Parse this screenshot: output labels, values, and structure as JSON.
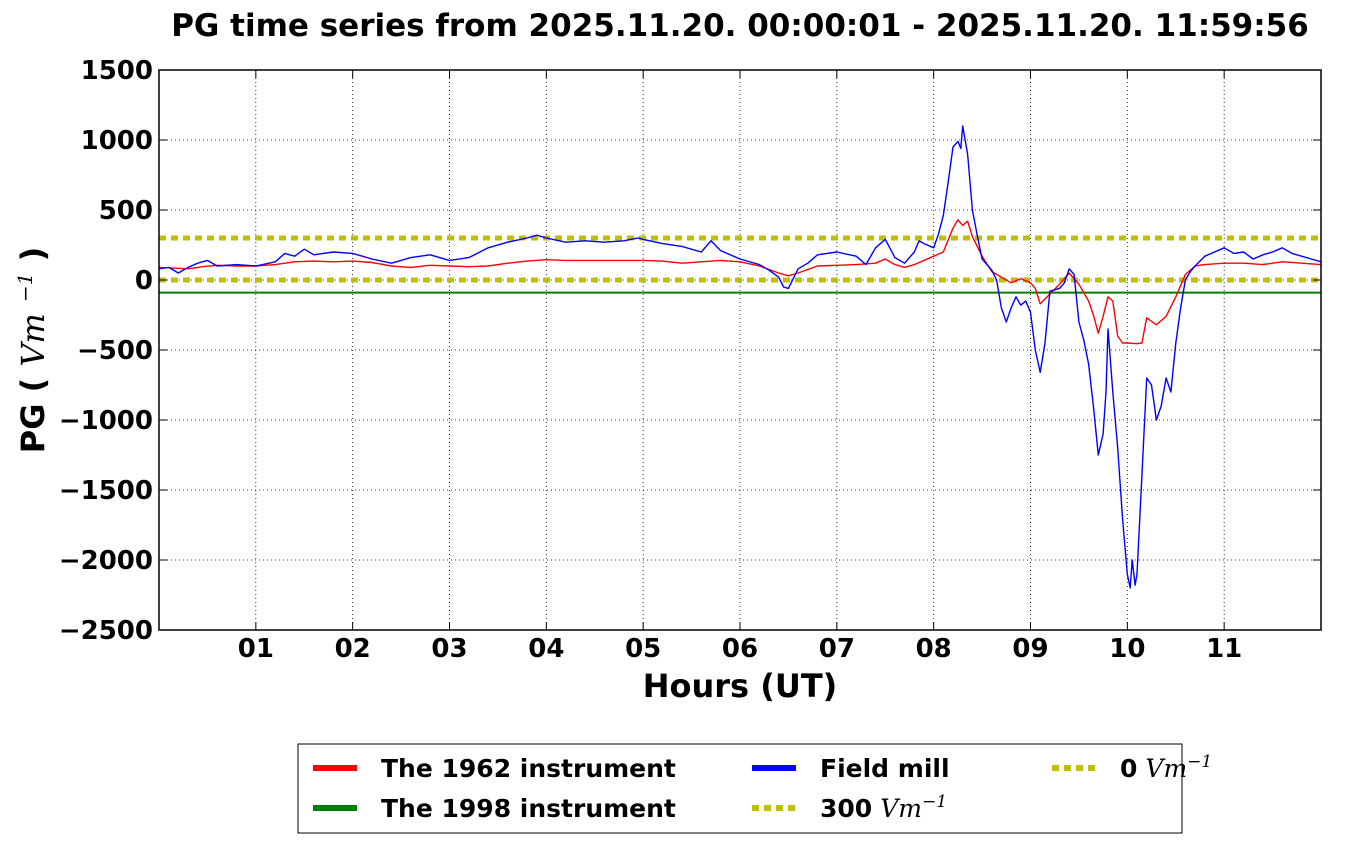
{
  "chart_data": {
    "type": "line",
    "title": "PG time series from 2025.11.20. 00:00:01 - 2025.11.20. 11:59:56",
    "xlabel": "Hours (UT)",
    "ylabel": "PG",
    "ylabel_unit": "Vm",
    "ylabel_unit_exp": "−1",
    "xlim": [
      0,
      12
    ],
    "ylim": [
      -2500,
      1500
    ],
    "grid": true,
    "legend_position": "below-center",
    "x_ticks": [
      {
        "value": 1,
        "label": "01"
      },
      {
        "value": 2,
        "label": "02"
      },
      {
        "value": 3,
        "label": "03"
      },
      {
        "value": 4,
        "label": "04"
      },
      {
        "value": 5,
        "label": "05"
      },
      {
        "value": 6,
        "label": "06"
      },
      {
        "value": 7,
        "label": "07"
      },
      {
        "value": 8,
        "label": "08"
      },
      {
        "value": 9,
        "label": "09"
      },
      {
        "value": 10,
        "label": "10"
      },
      {
        "value": 11,
        "label": "11"
      }
    ],
    "y_ticks": [
      {
        "value": 1500,
        "label": "1500"
      },
      {
        "value": 1000,
        "label": "1000"
      },
      {
        "value": 500,
        "label": "500"
      },
      {
        "value": 0,
        "label": "0"
      },
      {
        "value": -500,
        "label": "−500"
      },
      {
        "value": -1000,
        "label": "−1000"
      },
      {
        "value": -1500,
        "label": "−1500"
      },
      {
        "value": -2000,
        "label": "−2000"
      },
      {
        "value": -2500,
        "label": "−2500"
      }
    ],
    "series": [
      {
        "name": "The 1962 instrument",
        "color": "#ff0000",
        "style": "solid",
        "points": [
          [
            0.0,
            90
          ],
          [
            0.15,
            85
          ],
          [
            0.3,
            80
          ],
          [
            0.45,
            95
          ],
          [
            0.6,
            105
          ],
          [
            0.8,
            100
          ],
          [
            1.0,
            100
          ],
          [
            1.2,
            110
          ],
          [
            1.4,
            130
          ],
          [
            1.6,
            135
          ],
          [
            1.8,
            130
          ],
          [
            2.0,
            135
          ],
          [
            2.2,
            125
          ],
          [
            2.4,
            100
          ],
          [
            2.6,
            90
          ],
          [
            2.8,
            105
          ],
          [
            3.0,
            100
          ],
          [
            3.2,
            95
          ],
          [
            3.4,
            100
          ],
          [
            3.6,
            120
          ],
          [
            3.8,
            135
          ],
          [
            4.0,
            145
          ],
          [
            4.2,
            140
          ],
          [
            4.4,
            140
          ],
          [
            4.6,
            140
          ],
          [
            4.8,
            140
          ],
          [
            5.0,
            140
          ],
          [
            5.2,
            135
          ],
          [
            5.4,
            120
          ],
          [
            5.6,
            130
          ],
          [
            5.8,
            140
          ],
          [
            6.0,
            130
          ],
          [
            6.2,
            100
          ],
          [
            6.4,
            50
          ],
          [
            6.5,
            30
          ],
          [
            6.6,
            50
          ],
          [
            6.8,
            100
          ],
          [
            7.0,
            105
          ],
          [
            7.2,
            110
          ],
          [
            7.4,
            120
          ],
          [
            7.5,
            150
          ],
          [
            7.6,
            110
          ],
          [
            7.7,
            90
          ],
          [
            7.8,
            110
          ],
          [
            8.0,
            170
          ],
          [
            8.1,
            200
          ],
          [
            8.2,
            370
          ],
          [
            8.25,
            430
          ],
          [
            8.3,
            390
          ],
          [
            8.35,
            420
          ],
          [
            8.4,
            310
          ],
          [
            8.5,
            170
          ],
          [
            8.6,
            60
          ],
          [
            8.7,
            20
          ],
          [
            8.8,
            -20
          ],
          [
            8.9,
            10
          ],
          [
            9.0,
            -20
          ],
          [
            9.05,
            -60
          ],
          [
            9.1,
            -170
          ],
          [
            9.2,
            -100
          ],
          [
            9.3,
            -30
          ],
          [
            9.4,
            50
          ],
          [
            9.5,
            -30
          ],
          [
            9.6,
            -150
          ],
          [
            9.65,
            -250
          ],
          [
            9.7,
            -380
          ],
          [
            9.75,
            -260
          ],
          [
            9.8,
            -120
          ],
          [
            9.85,
            -150
          ],
          [
            9.9,
            -400
          ],
          [
            9.95,
            -450
          ],
          [
            10.0,
            -450
          ],
          [
            10.1,
            -455
          ],
          [
            10.15,
            -450
          ],
          [
            10.2,
            -270
          ],
          [
            10.3,
            -320
          ],
          [
            10.4,
            -260
          ],
          [
            10.5,
            -120
          ],
          [
            10.6,
            40
          ],
          [
            10.7,
            100
          ],
          [
            10.8,
            110
          ],
          [
            11.0,
            120
          ],
          [
            11.2,
            120
          ],
          [
            11.4,
            110
          ],
          [
            11.6,
            130
          ],
          [
            11.8,
            120
          ],
          [
            12.0,
            110
          ]
        ]
      },
      {
        "name": "The 1998 instrument",
        "color": "#008000",
        "style": "solid",
        "points": [
          [
            0.0,
            -90
          ],
          [
            12.0,
            -90
          ]
        ]
      },
      {
        "name": "Field mill",
        "color": "#0000ff",
        "style": "solid",
        "points": [
          [
            0.0,
            80
          ],
          [
            0.1,
            90
          ],
          [
            0.2,
            50
          ],
          [
            0.3,
            90
          ],
          [
            0.4,
            120
          ],
          [
            0.5,
            140
          ],
          [
            0.6,
            100
          ],
          [
            0.8,
            110
          ],
          [
            1.0,
            100
          ],
          [
            1.2,
            130
          ],
          [
            1.3,
            190
          ],
          [
            1.4,
            170
          ],
          [
            1.5,
            220
          ],
          [
            1.6,
            180
          ],
          [
            1.8,
            200
          ],
          [
            2.0,
            190
          ],
          [
            2.2,
            150
          ],
          [
            2.4,
            120
          ],
          [
            2.5,
            140
          ],
          [
            2.6,
            160
          ],
          [
            2.8,
            180
          ],
          [
            3.0,
            140
          ],
          [
            3.2,
            160
          ],
          [
            3.4,
            230
          ],
          [
            3.6,
            270
          ],
          [
            3.8,
            300
          ],
          [
            3.9,
            320
          ],
          [
            4.0,
            300
          ],
          [
            4.2,
            270
          ],
          [
            4.4,
            280
          ],
          [
            4.6,
            270
          ],
          [
            4.8,
            280
          ],
          [
            4.95,
            300
          ],
          [
            5.0,
            290
          ],
          [
            5.2,
            260
          ],
          [
            5.4,
            240
          ],
          [
            5.6,
            200
          ],
          [
            5.7,
            280
          ],
          [
            5.8,
            210
          ],
          [
            6.0,
            150
          ],
          [
            6.2,
            110
          ],
          [
            6.3,
            70
          ],
          [
            6.4,
            20
          ],
          [
            6.45,
            -50
          ],
          [
            6.5,
            -60
          ],
          [
            6.55,
            10
          ],
          [
            6.6,
            80
          ],
          [
            6.7,
            120
          ],
          [
            6.8,
            180
          ],
          [
            7.0,
            200
          ],
          [
            7.2,
            170
          ],
          [
            7.3,
            110
          ],
          [
            7.4,
            230
          ],
          [
            7.5,
            290
          ],
          [
            7.6,
            160
          ],
          [
            7.7,
            120
          ],
          [
            7.8,
            200
          ],
          [
            7.85,
            280
          ],
          [
            7.9,
            260
          ],
          [
            8.0,
            230
          ],
          [
            8.05,
            330
          ],
          [
            8.1,
            460
          ],
          [
            8.15,
            700
          ],
          [
            8.2,
            950
          ],
          [
            8.25,
            990
          ],
          [
            8.28,
            940
          ],
          [
            8.3,
            1100
          ],
          [
            8.35,
            900
          ],
          [
            8.4,
            500
          ],
          [
            8.45,
            320
          ],
          [
            8.5,
            150
          ],
          [
            8.6,
            70
          ],
          [
            8.65,
            0
          ],
          [
            8.7,
            -200
          ],
          [
            8.75,
            -300
          ],
          [
            8.8,
            -200
          ],
          [
            8.85,
            -120
          ],
          [
            8.9,
            -180
          ],
          [
            8.95,
            -150
          ],
          [
            9.0,
            -230
          ],
          [
            9.05,
            -500
          ],
          [
            9.1,
            -660
          ],
          [
            9.15,
            -450
          ],
          [
            9.2,
            -80
          ],
          [
            9.3,
            -60
          ],
          [
            9.35,
            -20
          ],
          [
            9.4,
            80
          ],
          [
            9.45,
            40
          ],
          [
            9.5,
            -300
          ],
          [
            9.55,
            -430
          ],
          [
            9.6,
            -600
          ],
          [
            9.65,
            -900
          ],
          [
            9.7,
            -1250
          ],
          [
            9.75,
            -1100
          ],
          [
            9.78,
            -800
          ],
          [
            9.8,
            -350
          ],
          [
            9.85,
            -800
          ],
          [
            9.9,
            -1200
          ],
          [
            9.95,
            -1700
          ],
          [
            10.0,
            -2100
          ],
          [
            10.03,
            -2200
          ],
          [
            10.05,
            -2000
          ],
          [
            10.08,
            -2180
          ],
          [
            10.1,
            -2100
          ],
          [
            10.15,
            -1400
          ],
          [
            10.2,
            -700
          ],
          [
            10.25,
            -750
          ],
          [
            10.3,
            -1000
          ],
          [
            10.35,
            -900
          ],
          [
            10.4,
            -700
          ],
          [
            10.45,
            -800
          ],
          [
            10.5,
            -450
          ],
          [
            10.55,
            -200
          ],
          [
            10.6,
            0
          ],
          [
            10.65,
            60
          ],
          [
            10.7,
            100
          ],
          [
            10.8,
            170
          ],
          [
            11.0,
            230
          ],
          [
            11.1,
            190
          ],
          [
            11.2,
            200
          ],
          [
            11.3,
            150
          ],
          [
            11.4,
            180
          ],
          [
            11.5,
            200
          ],
          [
            11.6,
            230
          ],
          [
            11.7,
            190
          ],
          [
            11.8,
            170
          ],
          [
            11.9,
            150
          ],
          [
            12.0,
            130
          ]
        ]
      },
      {
        "name": "300 Vm−1",
        "color": "#bfbf00",
        "style": "dotted",
        "points": [
          [
            0.0,
            300
          ],
          [
            12.0,
            300
          ]
        ]
      },
      {
        "name": "0 Vm−1",
        "color": "#bfbf00",
        "style": "dotted",
        "points": [
          [
            0.0,
            0
          ],
          [
            12.0,
            0
          ]
        ]
      }
    ],
    "legend": [
      {
        "label_main": "The 1962 instrument",
        "label_unit": "",
        "label_exp": "",
        "color": "#ff0000",
        "style": "solid"
      },
      {
        "label_main": "Field mill",
        "label_unit": "",
        "label_exp": "",
        "color": "#0000ff",
        "style": "solid"
      },
      {
        "label_main": "0",
        "label_unit": "Vm",
        "label_exp": "−1",
        "color": "#bfbf00",
        "style": "dotted"
      },
      {
        "label_main": "The 1998 instrument",
        "label_unit": "",
        "label_exp": "",
        "color": "#008000",
        "style": "solid"
      },
      {
        "label_main": "300",
        "label_unit": "Vm",
        "label_exp": "−1",
        "color": "#bfbf00",
        "style": "dotted"
      }
    ]
  }
}
